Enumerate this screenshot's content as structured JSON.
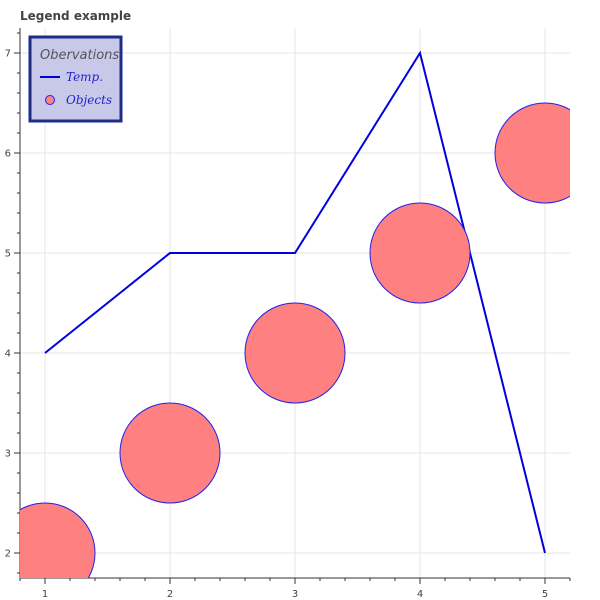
{
  "chart_data": {
    "type": "line",
    "title": "Legend example",
    "xlabel": "",
    "ylabel": "",
    "xlim": [
      0.8,
      5.2
    ],
    "ylim": [
      1.75,
      7.25
    ],
    "x_ticks": [
      1,
      2,
      3,
      4,
      5
    ],
    "y_ticks": [
      2,
      3,
      4,
      5,
      6,
      7
    ],
    "grid": true,
    "legend": {
      "title": "Obervations",
      "placement": "top-left",
      "background": "#c8c8e8",
      "border_color": "#1f2d8a",
      "text_color": "#2222cc"
    },
    "series": [
      {
        "name": "Temp.",
        "kind": "line",
        "color": "#0000dd",
        "x": [
          1,
          2,
          3,
          4,
          5
        ],
        "y": [
          4,
          5,
          5,
          7,
          2
        ]
      },
      {
        "name": "Objects",
        "kind": "scatter",
        "fill_color": "#ff8080",
        "stroke_color": "#2020ee",
        "x": [
          1,
          2,
          3,
          4,
          5
        ],
        "y": [
          2,
          3,
          4,
          5,
          6
        ]
      }
    ]
  }
}
